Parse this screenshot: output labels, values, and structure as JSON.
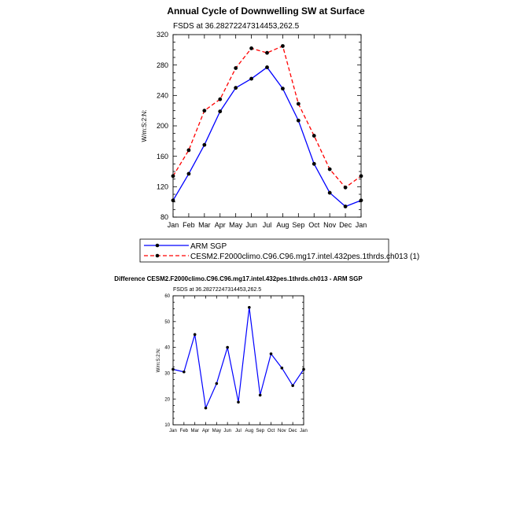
{
  "chart_data": [
    {
      "type": "line",
      "title": "Annual Cycle of Downwelling SW at Surface",
      "subtitle": "FSDS at 36.28272247314453,262.5",
      "ylabel": "W/m:S:2:N:",
      "xlabel": "",
      "categories": [
        "Jan",
        "Feb",
        "Mar",
        "Apr",
        "May",
        "Jun",
        "Jul",
        "Aug",
        "Sep",
        "Oct",
        "Nov",
        "Dec",
        "Jan"
      ],
      "ylim": [
        80,
        320
      ],
      "yticks": [
        80,
        120,
        160,
        200,
        240,
        280,
        320
      ],
      "grid": false,
      "legend": "bottom",
      "series": [
        {
          "name": "ARM SGP",
          "color": "#0000ff",
          "dash": "solid",
          "values": [
            102,
            137,
            175,
            219,
            250,
            262,
            277,
            249,
            207,
            150,
            112,
            94,
            102
          ]
        },
        {
          "name": "CESM2.F2000climo.C96.C96.mg17.intel.432pes.1thrds.ch013 (1)",
          "color": "#ff0000",
          "dash": "dashed",
          "values": [
            134,
            168,
            220,
            235,
            276,
            302,
            296,
            305,
            229,
            187,
            143,
            119,
            134
          ]
        }
      ]
    },
    {
      "type": "line",
      "title": "Difference CESM2.F2000climo.C96.C96.mg17.intel.432pes.1thrds.ch013 - ARM SGP",
      "subtitle": "FSDS at 36.28272247314453,262.5",
      "ylabel": "W/m:S:2:N:",
      "xlabel": "",
      "categories": [
        "Jan",
        "Feb",
        "Mar",
        "Apr",
        "May",
        "Jun",
        "Jul",
        "Aug",
        "Sep",
        "Oct",
        "Nov",
        "Dec",
        "Jan"
      ],
      "ylim": [
        10,
        60
      ],
      "yticks": [
        10,
        20,
        30,
        40,
        50,
        60
      ],
      "grid": false,
      "series": [
        {
          "color": "#0000ff",
          "values": [
            31.5,
            30.5,
            45,
            16.5,
            26,
            40,
            18.8,
            55.5,
            21.5,
            37.5,
            32,
            25.2,
            31.5
          ]
        }
      ]
    }
  ]
}
